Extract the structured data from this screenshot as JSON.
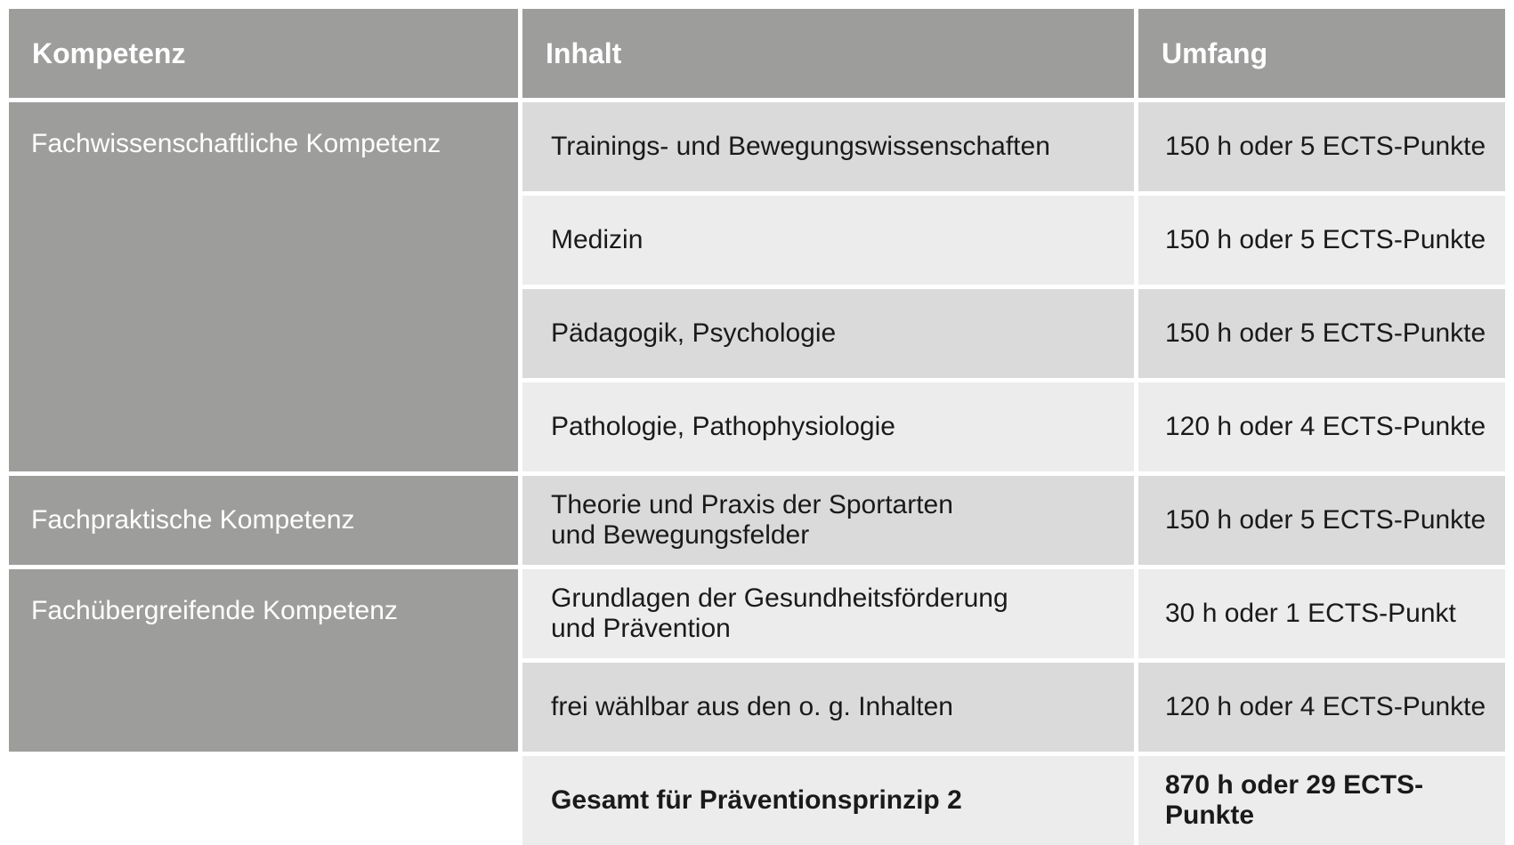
{
  "header": {
    "kompetenz": "Kompetenz",
    "inhalt": "Inhalt",
    "umfang": "Umfang"
  },
  "groups": [
    {
      "kompetenz": "Fachwissenschaftliche Kompetenz"
    },
    {
      "kompetenz": "Fachpraktische Kompetenz"
    },
    {
      "kompetenz": "Fachübergreifende Kompetenz"
    }
  ],
  "rows": [
    {
      "inhalt": "Trainings- und Bewegungswissenschaften",
      "umfang": "150 h oder 5 ECTS-Punkte"
    },
    {
      "inhalt": "Medizin",
      "umfang": "150 h oder 5 ECTS-Punkte"
    },
    {
      "inhalt": "Pädagogik, Psychologie",
      "umfang": "150 h oder 5 ECTS-Punkte"
    },
    {
      "inhalt": "Pathologie, Pathophysiologie",
      "umfang": "120 h oder 4 ECTS-Punkte"
    },
    {
      "inhalt_line1": "Theorie und Praxis der Sportarten",
      "inhalt_line2": "und Bewegungsfelder",
      "umfang": "150 h oder 5 ECTS-Punkte"
    },
    {
      "inhalt_line1": "Grundlagen der Gesundheitsförderung",
      "inhalt_line2": "und Prävention",
      "umfang": "30 h oder 1 ECTS-Punkt"
    },
    {
      "inhalt": "frei wählbar aus den o. g. Inhalten",
      "umfang": "120 h oder 4 ECTS-Punkte"
    }
  ],
  "total": {
    "inhalt": "Gesamt für Präventionsprinzip 2",
    "umfang": "870 h oder 29 ECTS-Punkte"
  },
  "colors": {
    "header_bg": "#9d9d9c",
    "row_dark": "#dadada",
    "row_light": "#ececec"
  }
}
